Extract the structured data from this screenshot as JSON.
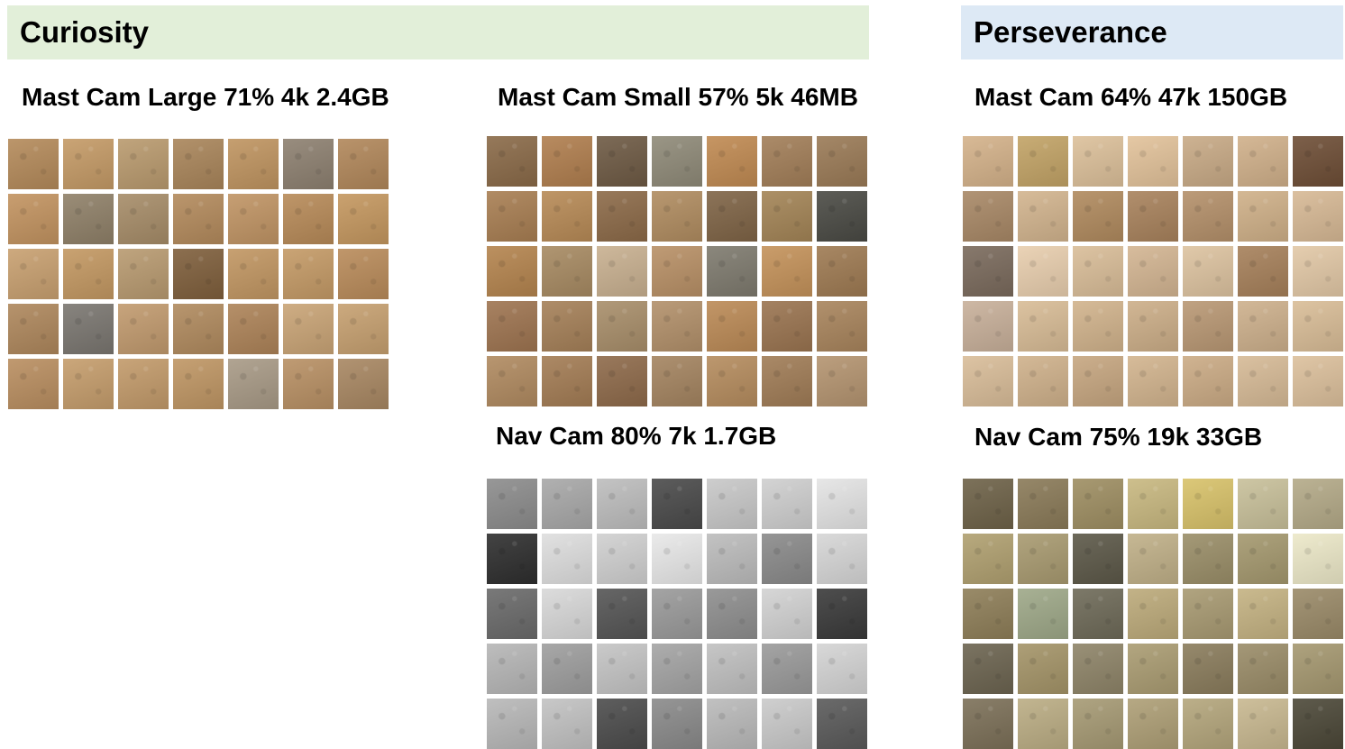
{
  "rovers": {
    "curiosity": {
      "title": "Curiosity",
      "banner_color": "#e2efd9"
    },
    "perseverance": {
      "title": "Perseverance",
      "banner_color": "#dde9f5"
    }
  },
  "panels": {
    "curiosity_mast_large": {
      "label": "Mast Cam Large 71% 4k 2.4GB",
      "rows": 5,
      "cols": 7,
      "tile_colors": [
        "#b48a5a",
        "#c49a66",
        "#b99a6e",
        "#a9855a",
        "#bf9460",
        "#8d8070",
        "#b1875a",
        "#c29360",
        "#8f8068",
        "#a68c68",
        "#b38a5c",
        "#c09464",
        "#b78a58",
        "#c4975f",
        "#c8a070",
        "#c39862",
        "#b89a70",
        "#7f5f3c",
        "#c19662",
        "#c49a66",
        "#b98b5a",
        "#ae875c",
        "#7a7670",
        "#c19a6e",
        "#b08a5e",
        "#ad8358",
        "#c9a476",
        "#c6a070",
        "#b98e60",
        "#c59d6c",
        "#c29a6a",
        "#bf9664",
        "#a89a86",
        "#b89064",
        "#a88762"
      ]
    },
    "curiosity_mast_small": {
      "label": "Mast Cam Small 57% 5k 46MB",
      "rows": 5,
      "cols": 7,
      "tile_colors": [
        "#8a6a48",
        "#b07e4e",
        "#6e5a44",
        "#8f8a78",
        "#c08a52",
        "#a27e58",
        "#9a7a56",
        "#a87e52",
        "#b78a56",
        "#8c6a48",
        "#b08c60",
        "#7f6446",
        "#a38456",
        "#4a4a44",
        "#b4844e",
        "#a78a62",
        "#c8b090",
        "#b89066",
        "#7e7a6e",
        "#c4925a",
        "#9e7a52",
        "#9e7450",
        "#a58058",
        "#a88e6a",
        "#b2906a",
        "#bb8a56",
        "#9a7450",
        "#a8845c",
        "#b08a60",
        "#a37c54",
        "#8e6a4a",
        "#a48460",
        "#b58c5e",
        "#a07c56",
        "#b49470"
      ]
    },
    "curiosity_nav": {
      "label": "Nav Cam 80% 7k 1.7GB",
      "rows": 5,
      "cols": 7,
      "tile_colors": [
        "#8c8c8c",
        "#a8a8a8",
        "#bdbdbd",
        "#4a4a4a",
        "#c8c8c8",
        "#cfcfcf",
        "#e4e4e4",
        "#2e2e2e",
        "#dedede",
        "#d0d0d0",
        "#e8e8e8",
        "#bcbcbc",
        "#8a8a8a",
        "#d6d6d6",
        "#6a6a6a",
        "#d8d8d8",
        "#555555",
        "#9a9a9a",
        "#8e8e8e",
        "#d2d2d2",
        "#3a3a3a",
        "#b6b6b6",
        "#9e9e9e",
        "#c4c4c4",
        "#a4a4a4",
        "#c0c0c0",
        "#9a9a9a",
        "#d4d4d4",
        "#b8b8b8",
        "#c2c2c2",
        "#4c4c4c",
        "#8a8a8a",
        "#bababa",
        "#cacaca",
        "#5a5a5a"
      ]
    },
    "perseverance_mast": {
      "label": "Mast Cam 64% 47k 150GB",
      "rows": 5,
      "cols": 7,
      "tile_colors": [
        "#d4b28a",
        "#c2a366",
        "#dcc09a",
        "#e2c29a",
        "#c8aa86",
        "#d0b08a",
        "#6e4e36",
        "#a88866",
        "#d2b48e",
        "#b08a5e",
        "#a8825c",
        "#b4906a",
        "#cfb088",
        "#d7b995",
        "#7a6a5c",
        "#e8ceae",
        "#d9bd98",
        "#d3b592",
        "#ddc3a0",
        "#a6805a",
        "#e2c8a6",
        "#c8b09a",
        "#d8bc96",
        "#d1b38c",
        "#ccae88",
        "#b99874",
        "#cdb08c",
        "#d9bd97",
        "#d9bd99",
        "#cfb18b",
        "#c6a680",
        "#d2b48e",
        "#cbab85",
        "#d6ba96",
        "#dcc09c"
      ]
    },
    "perseverance_nav": {
      "label": "Nav Cam 75% 19k 33GB",
      "rows": 5,
      "cols": 7,
      "tile_colors": [
        "#6e6248",
        "#8a7a58",
        "#9e8e62",
        "#c8b880",
        "#d8c26a",
        "#c8c09a",
        "#b4aa88",
        "#b0a070",
        "#a89a70",
        "#5c5848",
        "#c0b088",
        "#9a8e68",
        "#a4986e",
        "#ece8c8",
        "#8e7e58",
        "#9ea888",
        "#6e6a58",
        "#bcaa7a",
        "#a89a72",
        "#c4b282",
        "#9a8a68",
        "#6c6450",
        "#a49468",
        "#8e8468",
        "#aa9c72",
        "#8a7c5c",
        "#9a8c68",
        "#a59870",
        "#7c7058",
        "#bbad84",
        "#a69a74",
        "#ae9f76",
        "#b4a67c",
        "#c8b890",
        "#4c4838"
      ]
    }
  }
}
